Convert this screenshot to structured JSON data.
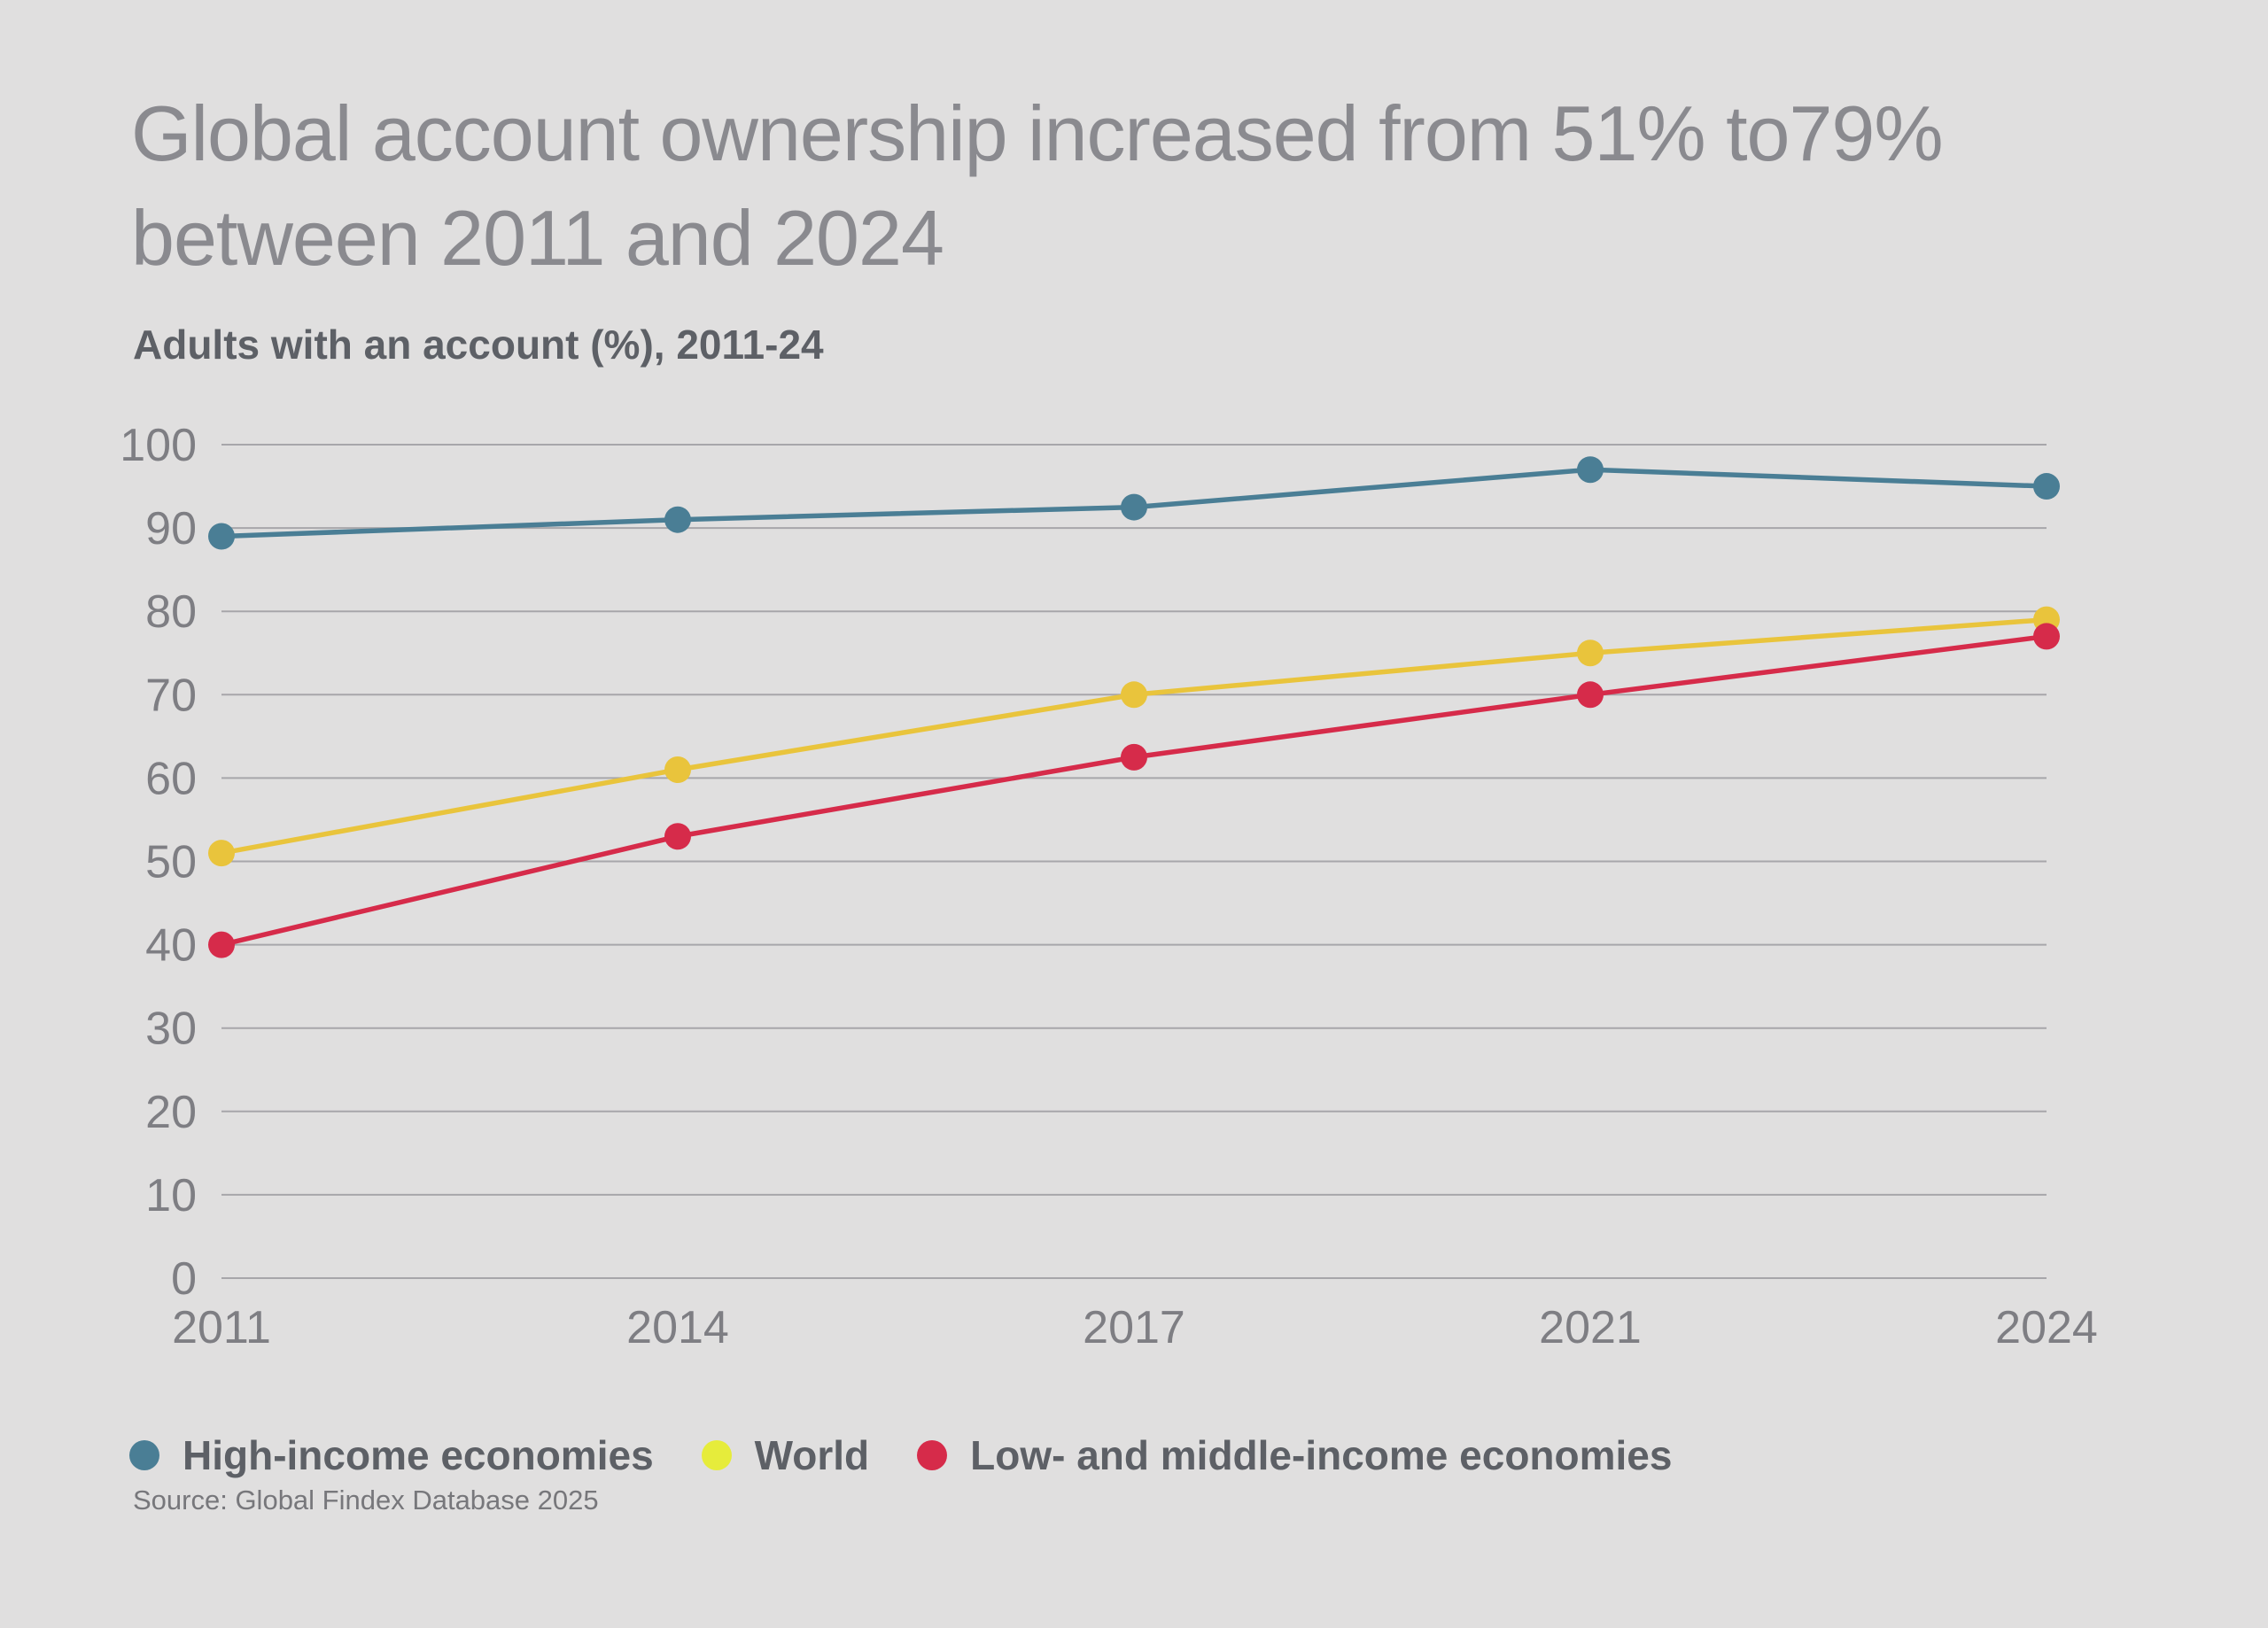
{
  "background": "#e0dfdf",
  "title_lines": [
    "Global account ownership increased from 51% to79%",
    "between 2011 and 2024"
  ],
  "subtitle": "Adults with an account (%), 2011-24",
  "source": "Source: Global Findex Database 2025",
  "chart_data": {
    "type": "line",
    "title": "Global account ownership increased from 51% to79% between 2011 and 2024",
    "subtitle": "Adults with an account (%), 2011-24",
    "categories": [
      "2011",
      "2014",
      "2017",
      "2021",
      "2024"
    ],
    "series": [
      {
        "name": "High-income economies",
        "color": "#4A7E95",
        "legend_dot_color": "#4A7E95",
        "values": [
          89,
          91,
          92.5,
          97,
          95
        ]
      },
      {
        "name": "World",
        "color": "#E9C43C",
        "legend_dot_color": "#E6EC3B",
        "values": [
          51,
          61,
          70,
          75,
          79
        ]
      },
      {
        "name": "Low- and middle-income economies",
        "color": "#D62B4A",
        "legend_dot_color": "#D62B4A",
        "values": [
          40,
          53,
          62.5,
          70,
          77
        ]
      }
    ],
    "ylim": [
      0,
      100
    ],
    "y_ticks": [
      0,
      10,
      20,
      30,
      40,
      50,
      60,
      70,
      80,
      90,
      100
    ],
    "grid": "horizontal",
    "legend_position": "bottom-left"
  }
}
